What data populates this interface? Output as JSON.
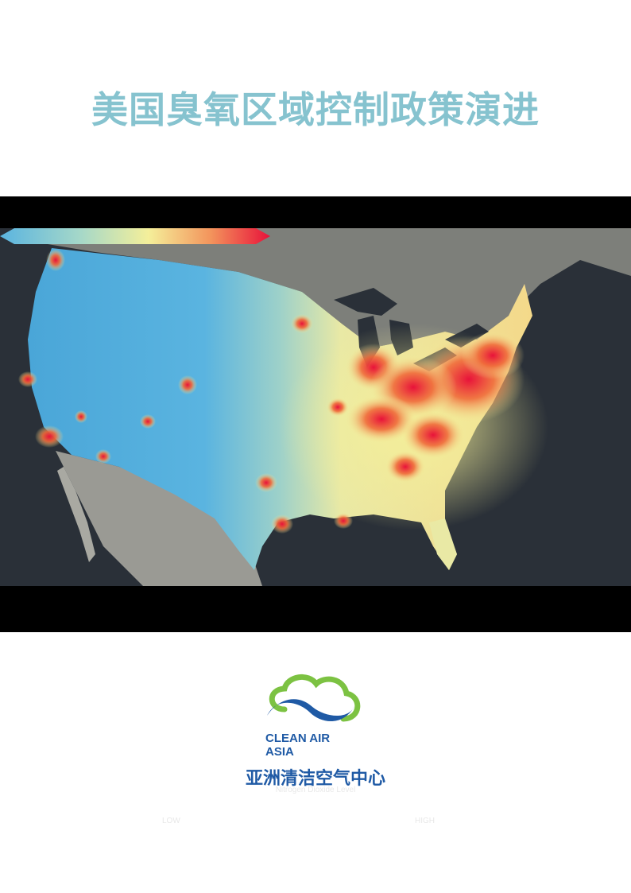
{
  "document": {
    "title": "美国臭氧区域控制政策演进"
  },
  "map": {
    "legend_title": "Nitrogen Dioxide Level",
    "legend_low": "LOW",
    "legend_high": "HIGH",
    "colors": {
      "ocean": "#2a3038",
      "low": "#5ab4e0",
      "mid": "#f4ef9a",
      "high": "#e8123a"
    }
  },
  "logo": {
    "en_line1": "CLEAN AIR",
    "en_line2": "ASIA",
    "cn": "亚洲清洁空气中心",
    "colors": {
      "blue": "#1f5aa5",
      "green": "#7cc242"
    }
  }
}
